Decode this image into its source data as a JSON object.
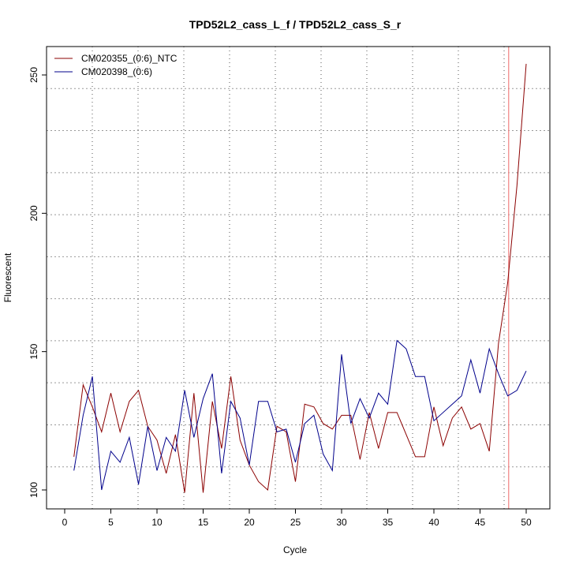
{
  "chart_data": {
    "type": "line",
    "title": "TPD52L2_cass_L_f / TPD52L2_cass_S_r",
    "xlabel": "Cycle",
    "ylabel": "Fluorescent",
    "xlim": [
      0,
      50
    ],
    "ylim": [
      100,
      250
    ],
    "xticks": [
      0,
      5,
      10,
      15,
      20,
      25,
      30,
      35,
      40,
      45,
      50
    ],
    "yticks": [
      100,
      150,
      200,
      250
    ],
    "grid": true,
    "legend_position": "top-left",
    "threshold_cycle": 48.1,
    "threshold_color": "#f08080",
    "x": [
      1,
      2,
      3,
      4,
      5,
      6,
      7,
      8,
      9,
      10,
      11,
      12,
      13,
      14,
      15,
      16,
      17,
      18,
      19,
      20,
      21,
      22,
      23,
      24,
      25,
      26,
      27,
      28,
      29,
      30,
      31,
      32,
      33,
      34,
      35,
      36,
      37,
      38,
      39,
      40,
      41,
      42,
      43,
      44,
      45,
      46,
      47,
      48,
      49,
      50
    ],
    "series": [
      {
        "name": "CM020355_(0:6)_NTC",
        "color": "#8b0000",
        "values": [
          112,
          138,
          130,
          121,
          135,
          121,
          132,
          136,
          123,
          118,
          106,
          120,
          99,
          135,
          99,
          132,
          115,
          141,
          118,
          109,
          103,
          100,
          123,
          121,
          103,
          131,
          130,
          124,
          122,
          127,
          127,
          111,
          128,
          115,
          128,
          128,
          120,
          112,
          112,
          130,
          116,
          126,
          130,
          122,
          124,
          114,
          153,
          175,
          210,
          254
        ]
      },
      {
        "name": "CM020398_(0:6)",
        "color": "#00008b",
        "values": [
          107,
          127,
          141,
          100,
          114,
          110,
          119,
          102,
          123,
          107,
          119,
          114,
          136,
          119,
          133,
          142,
          106,
          132,
          126,
          109,
          132,
          132,
          121,
          122,
          110,
          124,
          127,
          113,
          107,
          149,
          124,
          133,
          126,
          135,
          131,
          154,
          151,
          141,
          141,
          125,
          128,
          131,
          134,
          147,
          135,
          151,
          142,
          134,
          136,
          143
        ]
      }
    ]
  }
}
